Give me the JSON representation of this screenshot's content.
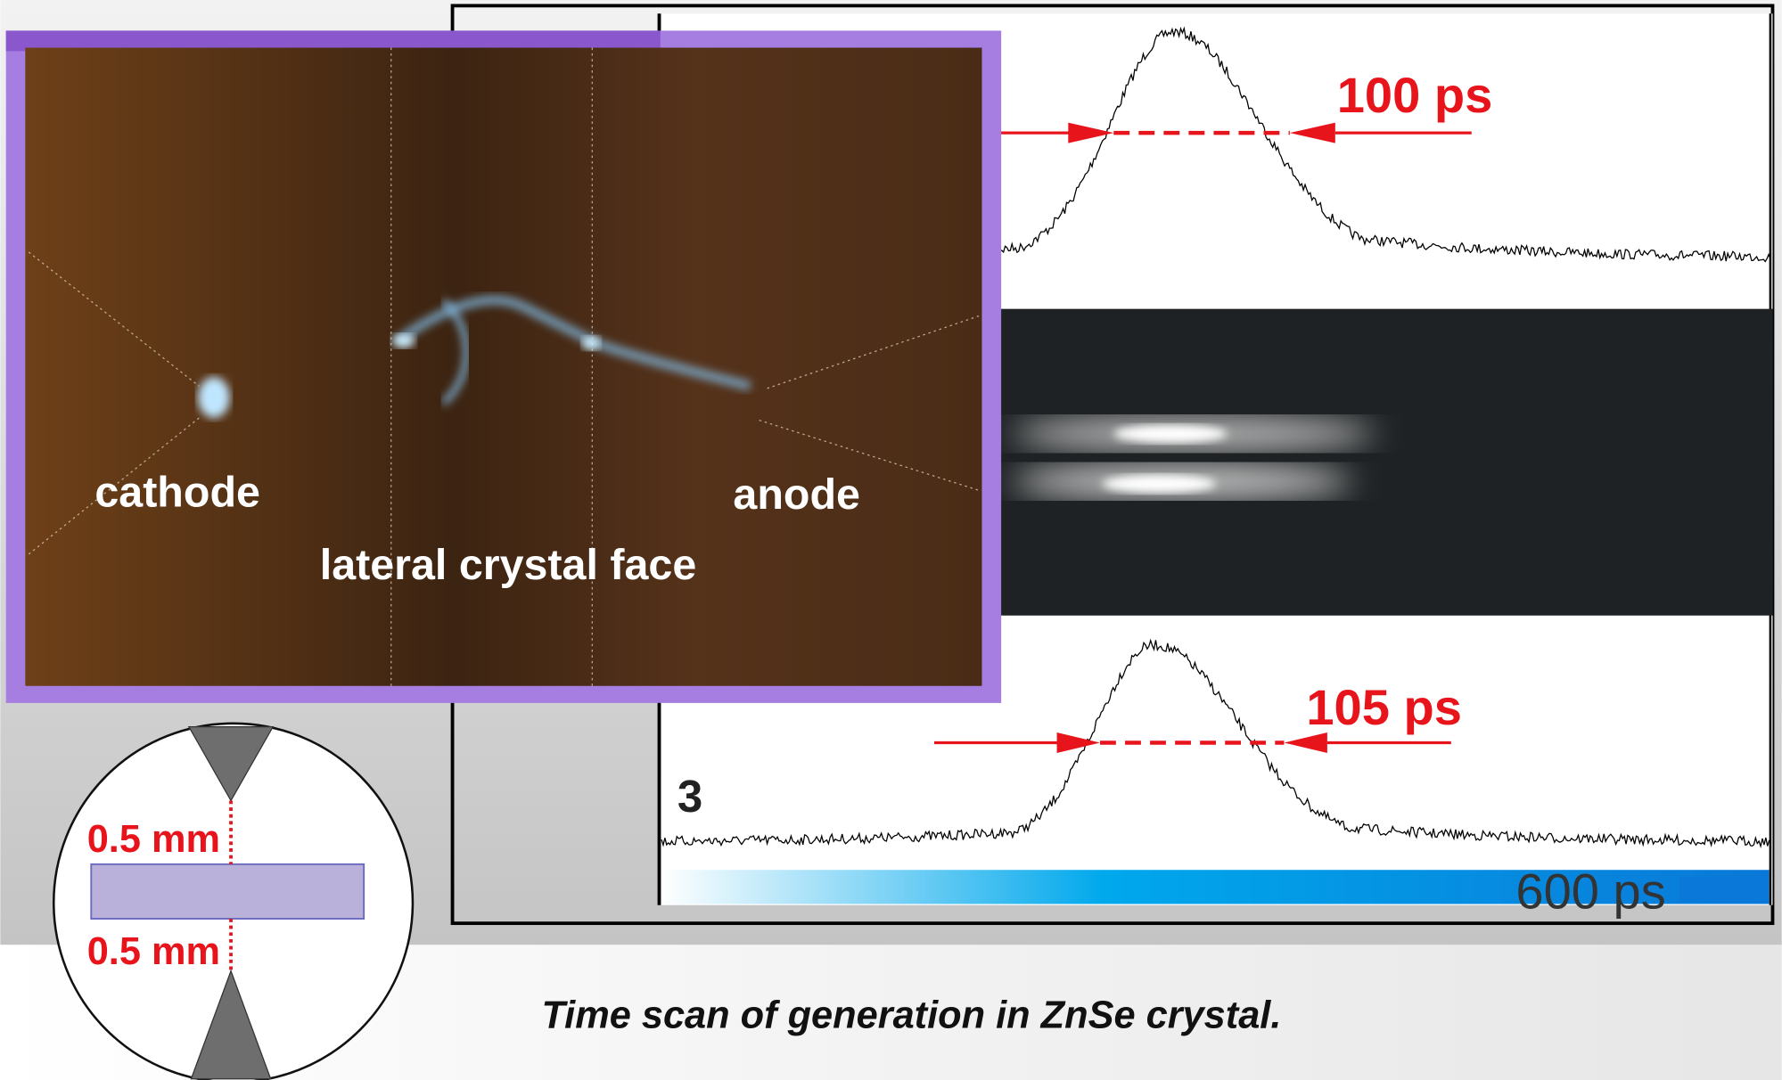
{
  "photo": {
    "labels": {
      "cathode": "cathode",
      "anode": "anode",
      "face": "lateral crystal face"
    }
  },
  "traces": [
    {
      "width_label": "100 ps"
    },
    {
      "width_label": "105 ps",
      "index": "3"
    }
  ],
  "scale_label": "600 ps",
  "schematic": {
    "gaps": [
      "0.5 mm",
      "0.5 mm"
    ]
  },
  "caption": "Time scan of generation in ZnSe crystal."
}
